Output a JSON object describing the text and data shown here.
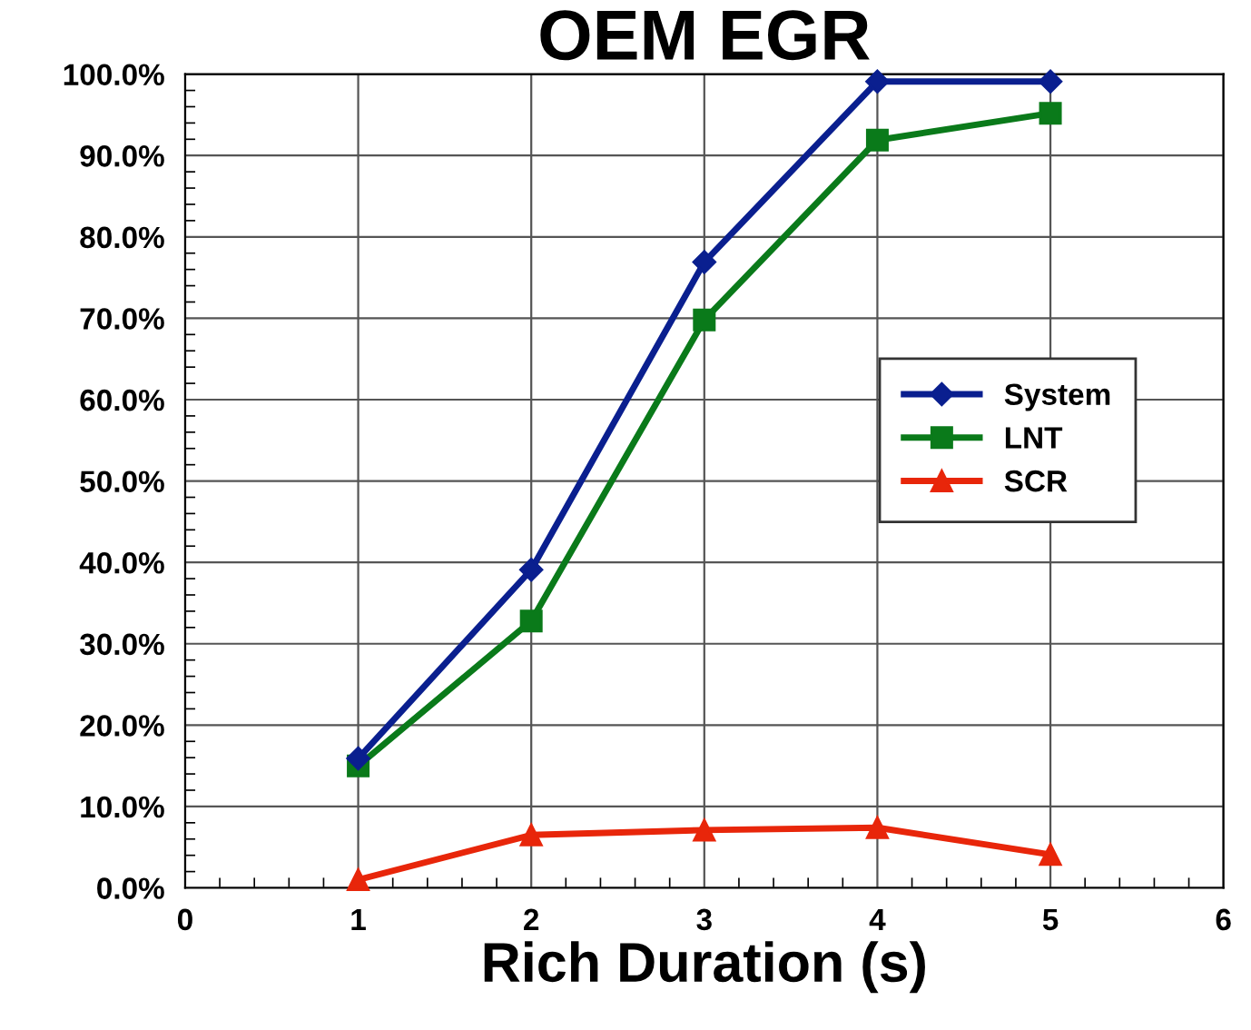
{
  "chart_data": {
    "type": "line",
    "title": "OEM EGR",
    "xlabel": "Rich Duration (s)",
    "x": [
      1,
      2,
      3,
      4,
      5
    ],
    "series": [
      {
        "name": "System",
        "color": "#0a1f8f",
        "marker": "diamond",
        "values": [
          15.9,
          39.1,
          76.9,
          99.1,
          99.1
        ]
      },
      {
        "name": "LNT",
        "color": "#0a7a1a",
        "marker": "square",
        "values": [
          15.0,
          32.8,
          69.8,
          91.9,
          95.2
        ]
      },
      {
        "name": "SCR",
        "color": "#e8260a",
        "marker": "triangle",
        "values": [
          1.0,
          6.5,
          7.1,
          7.4,
          4.1
        ]
      }
    ],
    "xlim": [
      0,
      6
    ],
    "xticks": [
      0,
      1,
      2,
      3,
      4,
      5,
      6
    ],
    "ylim": [
      0,
      100
    ],
    "yticks": [
      {
        "value": 0,
        "label": "0.0%"
      },
      {
        "value": 10,
        "label": "10.0%"
      },
      {
        "value": 20,
        "label": "20.0%"
      },
      {
        "value": 30,
        "label": "30.0%"
      },
      {
        "value": 40,
        "label": "40.0%"
      },
      {
        "value": 50,
        "label": "50.0%"
      },
      {
        "value": 60,
        "label": "60.0%"
      },
      {
        "value": 70,
        "label": "70.0%"
      },
      {
        "value": 80,
        "label": "80.0%"
      },
      {
        "value": 90,
        "label": "90.0%"
      },
      {
        "value": 100,
        "label": "100.0%"
      }
    ],
    "grid": true,
    "legend": "right",
    "line_style": "solid"
  }
}
